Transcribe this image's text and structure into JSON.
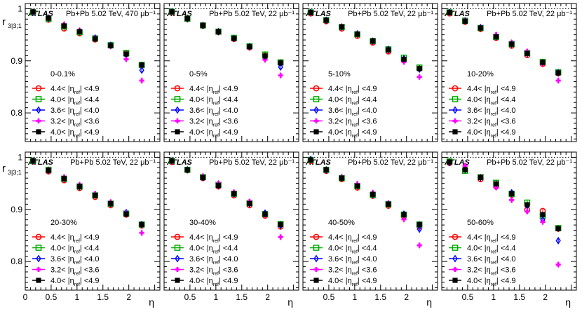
{
  "figure": {
    "y_axis_title": "r",
    "y_axis_sub": "3|3;1",
    "x_axis_title": "η",
    "experiment": "ATLAS",
    "x_ticks": [
      "0",
      "0.5",
      "1",
      "1.5",
      "2"
    ],
    "y_ticks": [
      "0.8",
      "0.9",
      "1"
    ]
  },
  "chart_data": {
    "type": "scatter",
    "xlim": [
      0,
      2.6
    ],
    "ylim": [
      0.745,
      1.01
    ],
    "xlabel": "η",
    "ylabel": "r3|3;1",
    "reference_line": 1.0,
    "x": [
      0.15,
      0.45,
      0.75,
      1.05,
      1.35,
      1.65,
      1.95,
      2.25
    ],
    "legend": [
      {
        "label": "4.4< |η_ref| <4.9",
        "color": "#ff0000",
        "marker": "circle-open"
      },
      {
        "label": "4.0< |η_ref| <4.4",
        "color": "#00aa00",
        "marker": "square-open"
      },
      {
        "label": "3.6< |η_ref| <4.0",
        "color": "#0000ff",
        "marker": "diamond-open"
      },
      {
        "label": "3.2< |η_ref| <3.6",
        "color": "#ff00ff",
        "marker": "cross"
      },
      {
        "label": "4.0< |η_ref| <4.9",
        "color": "#000000",
        "marker": "square-filled"
      }
    ],
    "panels": [
      {
        "centrality": "0-0.1%",
        "label": "Pb+Pb 5.02 TeV, 470 μb⁻¹",
        "series": [
          [
            0.993,
            0.979,
            0.962,
            0.953,
            0.941,
            0.929,
            0.915,
            0.892
          ],
          [
            0.993,
            0.981,
            0.966,
            0.955,
            0.943,
            0.93,
            0.915,
            0.892
          ],
          [
            0.993,
            0.982,
            0.968,
            0.957,
            0.944,
            0.93,
            0.912,
            0.882
          ],
          [
            0.993,
            0.983,
            0.97,
            0.958,
            0.943,
            0.928,
            0.903,
            0.862
          ],
          [
            0.994,
            0.982,
            0.967,
            0.956,
            0.942,
            0.929,
            0.913,
            0.892
          ]
        ]
      },
      {
        "centrality": "0-5%",
        "label": "Pb+Pb 5.02 TeV, 22 μb⁻¹",
        "series": [
          [
            0.993,
            0.98,
            0.967,
            0.955,
            0.942,
            0.926,
            0.91,
            0.896
          ],
          [
            0.994,
            0.981,
            0.968,
            0.956,
            0.944,
            0.928,
            0.912,
            0.897
          ],
          [
            0.994,
            0.981,
            0.968,
            0.956,
            0.943,
            0.927,
            0.908,
            0.888
          ],
          [
            0.993,
            0.982,
            0.969,
            0.956,
            0.943,
            0.925,
            0.902,
            0.872
          ],
          [
            0.994,
            0.981,
            0.968,
            0.956,
            0.943,
            0.927,
            0.909,
            0.896
          ]
        ]
      },
      {
        "centrality": "5-10%",
        "label": "Pb+Pb 5.02 TeV, 22 μb⁻¹",
        "series": [
          [
            0.991,
            0.976,
            0.962,
            0.948,
            0.935,
            0.918,
            0.901,
            0.885
          ],
          [
            0.993,
            0.978,
            0.965,
            0.951,
            0.938,
            0.922,
            0.906,
            0.887
          ],
          [
            0.993,
            0.978,
            0.965,
            0.952,
            0.938,
            0.922,
            0.904,
            0.884
          ],
          [
            0.992,
            0.978,
            0.966,
            0.952,
            0.938,
            0.92,
            0.898,
            0.869
          ],
          [
            0.993,
            0.978,
            0.965,
            0.951,
            0.938,
            0.921,
            0.903,
            0.885
          ]
        ]
      },
      {
        "centrality": "10-20%",
        "label": "Pb+Pb 5.02 TeV, 22 μb⁻¹",
        "series": [
          [
            0.991,
            0.975,
            0.961,
            0.944,
            0.929,
            0.911,
            0.894,
            0.876
          ],
          [
            0.993,
            0.977,
            0.963,
            0.946,
            0.932,
            0.915,
            0.898,
            0.878
          ],
          [
            0.993,
            0.977,
            0.964,
            0.947,
            0.932,
            0.914,
            0.896,
            0.877
          ],
          [
            0.992,
            0.977,
            0.964,
            0.95,
            0.935,
            0.918,
            0.895,
            0.862
          ],
          [
            0.993,
            0.976,
            0.963,
            0.946,
            0.932,
            0.914,
            0.897,
            0.877
          ]
        ]
      },
      {
        "centrality": "20-30%",
        "label": "Pb+Pb 5.02 TeV, 22 μb⁻¹",
        "series": [
          [
            0.992,
            0.973,
            0.956,
            0.941,
            0.924,
            0.908,
            0.89,
            0.869
          ],
          [
            0.993,
            0.976,
            0.959,
            0.944,
            0.927,
            0.911,
            0.892,
            0.871
          ],
          [
            0.993,
            0.975,
            0.96,
            0.944,
            0.928,
            0.912,
            0.894,
            0.871
          ],
          [
            0.993,
            0.976,
            0.962,
            0.947,
            0.93,
            0.914,
            0.893,
            0.855
          ],
          [
            0.993,
            0.975,
            0.959,
            0.944,
            0.927,
            0.911,
            0.891,
            0.871
          ]
        ]
      },
      {
        "centrality": "30-40%",
        "label": "Pb+Pb 5.02 TeV, 22 μb⁻¹",
        "series": [
          [
            0.991,
            0.975,
            0.96,
            0.944,
            0.927,
            0.908,
            0.888,
            0.867
          ],
          [
            0.993,
            0.976,
            0.962,
            0.947,
            0.93,
            0.912,
            0.891,
            0.872
          ],
          [
            0.993,
            0.976,
            0.961,
            0.946,
            0.93,
            0.911,
            0.893,
            0.869
          ],
          [
            0.992,
            0.976,
            0.964,
            0.95,
            0.933,
            0.915,
            0.89,
            0.847
          ],
          [
            0.993,
            0.976,
            0.961,
            0.946,
            0.93,
            0.911,
            0.891,
            0.871
          ]
        ]
      },
      {
        "centrality": "40-50%",
        "label": "Pb+Pb 5.02 TeV, 22 μb⁻¹",
        "series": [
          [
            0.993,
            0.974,
            0.958,
            0.942,
            0.926,
            0.907,
            0.887,
            0.867
          ],
          [
            0.995,
            0.976,
            0.96,
            0.945,
            0.928,
            0.91,
            0.89,
            0.871
          ],
          [
            0.996,
            0.976,
            0.961,
            0.946,
            0.929,
            0.911,
            0.891,
            0.862
          ],
          [
            0.995,
            0.976,
            0.962,
            0.949,
            0.932,
            0.912,
            0.881,
            0.831
          ],
          [
            0.995,
            0.976,
            0.96,
            0.945,
            0.929,
            0.91,
            0.89,
            0.871
          ]
        ]
      },
      {
        "centrality": "50-60%",
        "label": "Pb+Pb 5.02 TeV, 22 μb⁻¹",
        "series": [
          [
            0.989,
            0.977,
            0.958,
            0.944,
            0.928,
            0.899,
            0.897,
            0.863
          ],
          [
            0.992,
            0.974,
            0.962,
            0.951,
            0.93,
            0.913,
            0.888,
            0.864
          ],
          [
            0.99,
            0.977,
            0.961,
            0.948,
            0.932,
            0.907,
            0.88,
            0.84
          ],
          [
            0.991,
            0.984,
            0.962,
            0.942,
            0.918,
            0.896,
            0.876,
            0.794
          ],
          [
            0.991,
            0.976,
            0.961,
            0.949,
            0.93,
            0.909,
            0.89,
            0.863
          ]
        ]
      }
    ]
  }
}
